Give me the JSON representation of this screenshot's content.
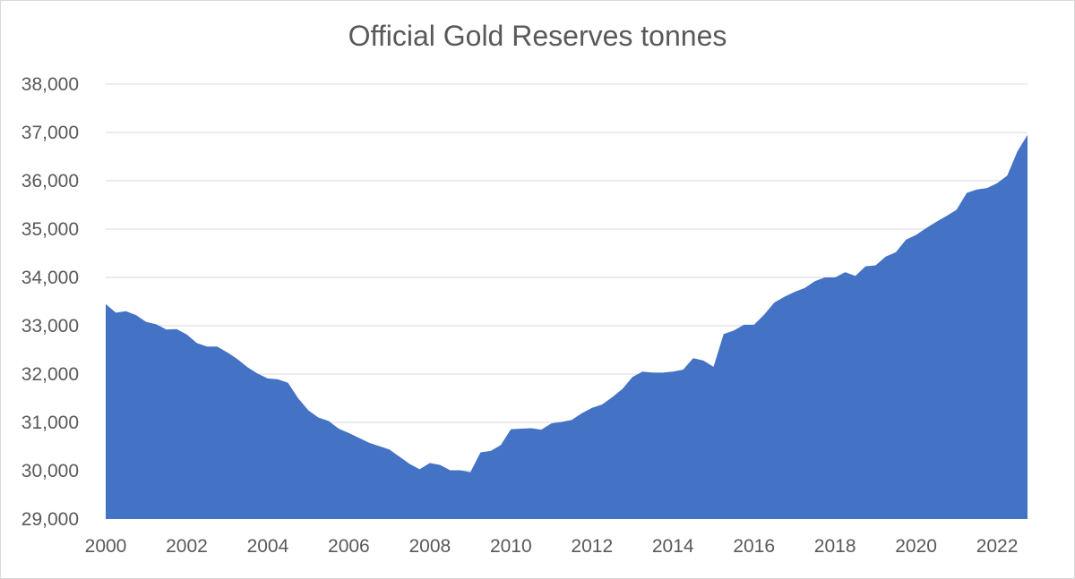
{
  "chart_data": {
    "type": "area",
    "title": "Official Gold Reserves tonnes",
    "xlabel": "",
    "ylabel": "",
    "xlim": [
      2000,
      2022.75
    ],
    "ylim": [
      29000,
      38000
    ],
    "grid": true,
    "legend": "none",
    "colors": {
      "fill": "#4472c4",
      "grid": "#d9d9d9",
      "text": "#595959"
    },
    "x_ticks": [
      {
        "value": 2000,
        "label": "2000"
      },
      {
        "value": 2002,
        "label": "2002"
      },
      {
        "value": 2004,
        "label": "2004"
      },
      {
        "value": 2006,
        "label": "2006"
      },
      {
        "value": 2008,
        "label": "2008"
      },
      {
        "value": 2010,
        "label": "2010"
      },
      {
        "value": 2012,
        "label": "2012"
      },
      {
        "value": 2014,
        "label": "2014"
      },
      {
        "value": 2016,
        "label": "2016"
      },
      {
        "value": 2018,
        "label": "2018"
      },
      {
        "value": 2020,
        "label": "2020"
      },
      {
        "value": 2022,
        "label": "2022"
      }
    ],
    "y_ticks": [
      {
        "value": 29000,
        "label": "29,000"
      },
      {
        "value": 30000,
        "label": "30,000"
      },
      {
        "value": 31000,
        "label": "31,000"
      },
      {
        "value": 32000,
        "label": "32,000"
      },
      {
        "value": 33000,
        "label": "33,000"
      },
      {
        "value": 34000,
        "label": "34,000"
      },
      {
        "value": 35000,
        "label": "35,000"
      },
      {
        "value": 36000,
        "label": "36,000"
      },
      {
        "value": 37000,
        "label": "37,000"
      },
      {
        "value": 38000,
        "label": "38,000"
      }
    ],
    "series": [
      {
        "name": "Official Gold Reserves",
        "x": [
          2000,
          2000.25,
          2000.5,
          2000.75,
          2001,
          2001.25,
          2001.5,
          2001.75,
          2002,
          2002.25,
          2002.5,
          2002.75,
          2003,
          2003.25,
          2003.5,
          2003.75,
          2004,
          2004.25,
          2004.5,
          2004.75,
          2005,
          2005.25,
          2005.5,
          2005.75,
          2006,
          2006.25,
          2006.5,
          2006.75,
          2007,
          2007.25,
          2007.5,
          2007.75,
          2008,
          2008.25,
          2008.5,
          2008.75,
          2009,
          2009.25,
          2009.5,
          2009.75,
          2010,
          2010.25,
          2010.5,
          2010.75,
          2011,
          2011.25,
          2011.5,
          2011.75,
          2012,
          2012.25,
          2012.5,
          2012.75,
          2013,
          2013.25,
          2013.5,
          2013.75,
          2014,
          2014.25,
          2014.5,
          2014.75,
          2015,
          2015.25,
          2015.5,
          2015.75,
          2016,
          2016.25,
          2016.5,
          2016.75,
          2017,
          2017.25,
          2017.5,
          2017.75,
          2018,
          2018.25,
          2018.5,
          2018.75,
          2019,
          2019.25,
          2019.5,
          2019.75,
          2020,
          2020.25,
          2020.5,
          2020.75,
          2021,
          2021.25,
          2021.5,
          2021.75,
          2022,
          2022.25,
          2022.5,
          2022.75
        ],
        "values": [
          33450,
          33270,
          33300,
          33220,
          33080,
          33030,
          32920,
          32930,
          32820,
          32640,
          32570,
          32570,
          32450,
          32310,
          32140,
          32010,
          31910,
          31890,
          31820,
          31500,
          31250,
          31100,
          31030,
          30870,
          30780,
          30680,
          30580,
          30510,
          30440,
          30290,
          30140,
          30030,
          30160,
          30120,
          30010,
          30010,
          29970,
          30380,
          30410,
          30530,
          30860,
          30870,
          30880,
          30850,
          30980,
          31010,
          31050,
          31190,
          31300,
          31370,
          31520,
          31690,
          31940,
          32050,
          32030,
          32030,
          32050,
          32090,
          32330,
          32280,
          32150,
          32830,
          32900,
          33020,
          33020,
          33230,
          33480,
          33600,
          33700,
          33780,
          33920,
          34000,
          34000,
          34110,
          34030,
          34230,
          34250,
          34430,
          34520,
          34780,
          34880,
          35020,
          35150,
          35270,
          35400,
          35750,
          35820,
          35850,
          35950,
          36110,
          36610,
          36950
        ]
      }
    ]
  }
}
